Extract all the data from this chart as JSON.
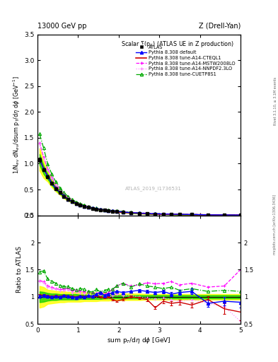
{
  "xlim": [
    0,
    5
  ],
  "ylim_main": [
    0,
    3.5
  ],
  "ylim_ratio": [
    0.5,
    2.5
  ],
  "x_data": [
    0.05,
    0.15,
    0.25,
    0.35,
    0.45,
    0.55,
    0.65,
    0.75,
    0.85,
    0.95,
    1.05,
    1.15,
    1.25,
    1.35,
    1.45,
    1.55,
    1.65,
    1.75,
    1.85,
    1.95,
    2.1,
    2.3,
    2.5,
    2.7,
    2.9,
    3.1,
    3.3,
    3.5,
    3.8,
    4.2,
    4.6,
    5.0
  ],
  "atlas_y": [
    1.08,
    0.88,
    0.75,
    0.62,
    0.52,
    0.44,
    0.37,
    0.31,
    0.27,
    0.23,
    0.2,
    0.175,
    0.155,
    0.138,
    0.123,
    0.11,
    0.098,
    0.088,
    0.079,
    0.071,
    0.06,
    0.048,
    0.04,
    0.034,
    0.029,
    0.025,
    0.022,
    0.019,
    0.016,
    0.012,
    0.01,
    0.008
  ],
  "atlas_yerr": [
    0.04,
    0.03,
    0.025,
    0.02,
    0.016,
    0.013,
    0.011,
    0.009,
    0.008,
    0.007,
    0.006,
    0.005,
    0.005,
    0.004,
    0.004,
    0.003,
    0.003,
    0.003,
    0.003,
    0.002,
    0.002,
    0.002,
    0.002,
    0.001,
    0.001,
    0.001,
    0.001,
    0.001,
    0.001,
    0.001,
    0.001,
    0.001
  ],
  "default_ratio": [
    1.01,
    1.02,
    1.01,
    1.0,
    1.01,
    1.0,
    1.02,
    1.01,
    1.0,
    0.99,
    1.01,
    1.0,
    1.02,
    1.01,
    1.05,
    1.08,
    1.03,
    1.05,
    1.08,
    1.1,
    1.08,
    1.1,
    1.12,
    1.1,
    1.08,
    1.1,
    1.05,
    1.08,
    1.1,
    0.88,
    0.92,
    0.9
  ],
  "cteql1_ratio": [
    1.02,
    1.03,
    1.02,
    1.01,
    1.02,
    1.01,
    1.03,
    1.02,
    1.01,
    1.0,
    1.02,
    1.01,
    1.0,
    0.99,
    1.02,
    1.0,
    0.98,
    1.0,
    0.95,
    0.92,
    0.95,
    1.0,
    0.98,
    0.95,
    0.8,
    0.92,
    0.88,
    0.9,
    0.85,
    0.95,
    0.78,
    0.72
  ],
  "mstw_ratio": [
    1.3,
    1.28,
    1.2,
    1.18,
    1.15,
    1.14,
    1.14,
    1.16,
    1.11,
    1.13,
    1.1,
    1.09,
    1.1,
    1.07,
    1.06,
    1.09,
    1.05,
    1.08,
    1.14,
    1.2,
    1.25,
    1.2,
    1.22,
    1.26,
    1.24,
    1.25,
    1.28,
    1.22,
    1.25,
    1.18,
    1.2,
    1.5
  ],
  "nnpdf_ratio": [
    1.28,
    1.26,
    1.18,
    1.15,
    1.14,
    1.12,
    1.11,
    1.13,
    1.08,
    1.09,
    1.07,
    1.06,
    1.05,
    1.03,
    1.02,
    1.04,
    1.02,
    1.0,
    1.02,
    1.05,
    1.03,
    1.02,
    1.0,
    0.98,
    0.96,
    0.98,
    0.95,
    0.92,
    0.95,
    0.88,
    0.82,
    0.55
  ],
  "cuetp_ratio": [
    1.46,
    1.48,
    1.33,
    1.29,
    1.25,
    1.21,
    1.19,
    1.19,
    1.15,
    1.13,
    1.15,
    1.14,
    1.1,
    1.09,
    1.14,
    1.09,
    1.12,
    1.14,
    1.14,
    1.2,
    1.25,
    1.18,
    1.24,
    1.2,
    1.18,
    1.15,
    1.18,
    1.12,
    1.15,
    1.1,
    1.12,
    1.1
  ],
  "ratio_err_default": [
    0.03,
    0.025,
    0.02,
    0.018,
    0.015,
    0.013,
    0.011,
    0.01,
    0.009,
    0.009,
    0.008,
    0.008,
    0.008,
    0.008,
    0.009,
    0.01,
    0.01,
    0.012,
    0.013,
    0.015,
    0.016,
    0.019,
    0.022,
    0.025,
    0.028,
    0.033,
    0.038,
    0.042,
    0.05,
    0.065,
    0.08,
    0.095
  ],
  "ratio_err_cteql1": [
    0.03,
    0.025,
    0.02,
    0.018,
    0.015,
    0.013,
    0.011,
    0.01,
    0.009,
    0.009,
    0.008,
    0.008,
    0.008,
    0.008,
    0.009,
    0.01,
    0.01,
    0.012,
    0.013,
    0.015,
    0.016,
    0.019,
    0.022,
    0.025,
    0.028,
    0.033,
    0.038,
    0.042,
    0.05,
    0.065,
    0.1,
    0.15
  ],
  "band_yellow_lo": [
    0.8,
    0.82,
    0.87,
    0.88,
    0.89,
    0.9,
    0.9,
    0.91,
    0.91,
    0.91,
    0.91,
    0.92,
    0.92,
    0.92,
    0.92,
    0.93,
    0.93,
    0.93,
    0.94,
    0.94,
    0.94,
    0.94,
    0.94,
    0.95,
    0.95,
    0.95,
    0.95,
    0.95,
    0.95,
    0.95,
    0.95,
    0.95
  ],
  "band_yellow_hi": [
    1.2,
    1.18,
    1.13,
    1.12,
    1.11,
    1.1,
    1.1,
    1.09,
    1.09,
    1.09,
    1.09,
    1.08,
    1.08,
    1.08,
    1.08,
    1.07,
    1.07,
    1.07,
    1.06,
    1.06,
    1.06,
    1.06,
    1.06,
    1.05,
    1.05,
    1.05,
    1.05,
    1.05,
    1.05,
    1.05,
    1.05,
    1.05
  ],
  "band_green_lo": [
    0.9,
    0.91,
    0.93,
    0.94,
    0.94,
    0.95,
    0.95,
    0.95,
    0.95,
    0.95,
    0.96,
    0.96,
    0.96,
    0.96,
    0.96,
    0.96,
    0.97,
    0.97,
    0.97,
    0.97,
    0.97,
    0.97,
    0.97,
    0.97,
    0.97,
    0.97,
    0.97,
    0.97,
    0.97,
    0.97,
    0.97,
    0.97
  ],
  "band_green_hi": [
    1.1,
    1.09,
    1.07,
    1.06,
    1.06,
    1.05,
    1.05,
    1.05,
    1.05,
    1.05,
    1.04,
    1.04,
    1.04,
    1.04,
    1.04,
    1.04,
    1.03,
    1.03,
    1.03,
    1.03,
    1.03,
    1.03,
    1.03,
    1.03,
    1.03,
    1.03,
    1.03,
    1.03,
    1.03,
    1.03,
    1.03,
    1.03
  ],
  "color_atlas": "black",
  "color_default": "#0000ff",
  "color_cteql1": "#cc0000",
  "color_mstw": "#ff00ff",
  "color_nnpdf": "#ff88ff",
  "color_cuetp": "#00aa00",
  "band_yellow": "#ffff00",
  "band_green": "#00cc00"
}
